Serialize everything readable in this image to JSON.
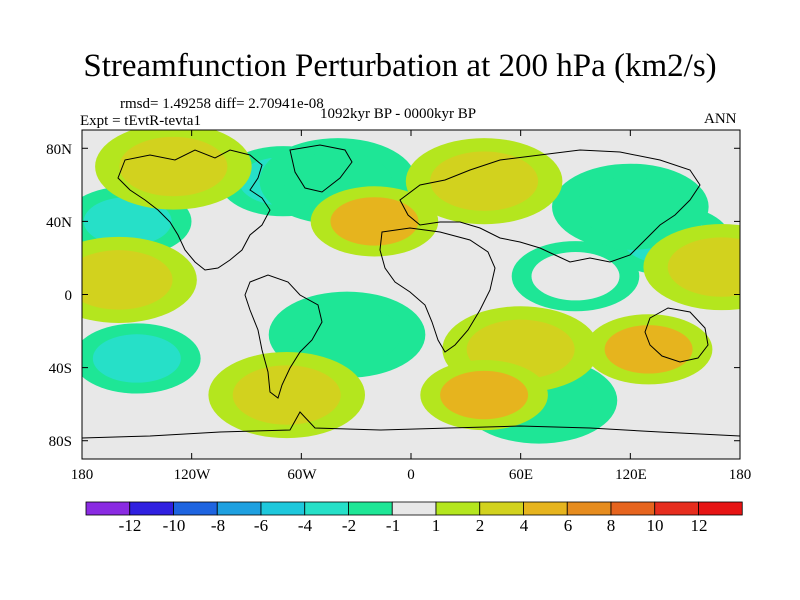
{
  "title": "Streamfunction Perturbation at 200 hPa (km2/s)",
  "stats": "rmsd= 1.49258 diff= 2.70941e-08",
  "experiment": "Expt = tEvtR-tevta1",
  "period": "1092kyr BP - 0000kyr BP",
  "season": "ANN",
  "chart_data": {
    "type": "heatmap",
    "projection": "cylindrical equidistant",
    "variable": "Streamfunction Perturbation at 200 hPa",
    "units": "km2/s",
    "lat_range": [
      -90,
      90
    ],
    "lon_range": [
      -180,
      180
    ],
    "lat_ticks": [
      "80N",
      "40N",
      "0",
      "40S",
      "80S"
    ],
    "lat_tick_values": [
      80,
      40,
      0,
      -40,
      -80
    ],
    "lon_ticks": [
      "180",
      "120W",
      "60W",
      "0",
      "60E",
      "120E",
      "180"
    ],
    "lon_tick_values": [
      -180,
      -120,
      -60,
      0,
      60,
      120,
      180
    ],
    "contour_levels": [
      "-12",
      "-10",
      "-8",
      "-6",
      "-4",
      "-2",
      "-1",
      "1",
      "2",
      "4",
      "6",
      "8",
      "10",
      "12"
    ],
    "colors": [
      "#8a2be2",
      "#3020e0",
      "#1e64e0",
      "#1ea0e0",
      "#1ec8dc",
      "#26e0c8",
      "#1ee696",
      "#e8e8e8",
      "#b4e61e",
      "#d2d21e",
      "#e6b41e",
      "#e68c1e",
      "#e6641e",
      "#e62d1e",
      "#e61414"
    ],
    "anomalies": [
      {
        "lon": -70,
        "lat": 62,
        "value": -4
      },
      {
        "lon": -40,
        "lat": 62,
        "value": -2
      },
      {
        "lon": -155,
        "lat": 40,
        "value": -4
      },
      {
        "lon": -150,
        "lat": -35,
        "value": -4
      },
      {
        "lon": -35,
        "lat": -22,
        "value": -2
      },
      {
        "lon": 140,
        "lat": 30,
        "value": -4
      },
      {
        "lon": 120,
        "lat": 48,
        "value": -2
      },
      {
        "lon": 70,
        "lat": -58,
        "value": -2
      },
      {
        "lon": 90,
        "lat": 10,
        "value": -1
      },
      {
        "lon": -20,
        "lat": 40,
        "value": 4
      },
      {
        "lon": 40,
        "lat": 62,
        "value": 2
      },
      {
        "lon": 60,
        "lat": -30,
        "value": 2
      },
      {
        "lon": 130,
        "lat": -30,
        "value": 4
      },
      {
        "lon": 40,
        "lat": -55,
        "value": 4
      },
      {
        "lon": 170,
        "lat": 15,
        "value": 2
      },
      {
        "lon": -160,
        "lat": 8,
        "value": 2
      },
      {
        "lon": -130,
        "lat": 70,
        "value": 2
      },
      {
        "lon": -68,
        "lat": -55,
        "value": 2
      }
    ]
  }
}
